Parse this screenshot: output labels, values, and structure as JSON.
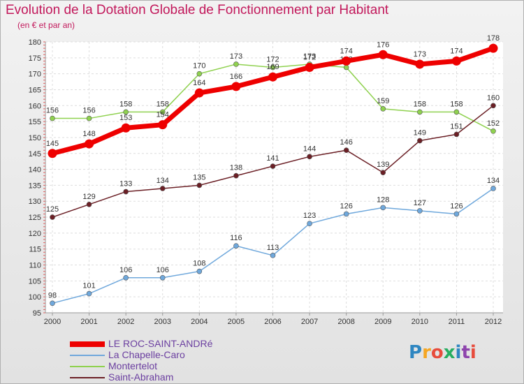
{
  "title": "Evolution de la Dotation Globale de Fonctionnement par Habitant",
  "subtitle": "(en € et par an)",
  "logo": {
    "text": "Proxiti",
    "colors": [
      "#2e86c1",
      "#f5a623",
      "#e74c3c",
      "#27ae60",
      "#2e86c1",
      "#8e44ad",
      "#e74c3c"
    ]
  },
  "chart_data": {
    "type": "line",
    "x": [
      "2000",
      "2001",
      "2002",
      "2003",
      "2004",
      "2005",
      "2006",
      "2007",
      "2008",
      "2009",
      "2010",
      "2011",
      "2012"
    ],
    "ylim": [
      95,
      180
    ],
    "yticks": [
      95,
      100,
      105,
      110,
      115,
      120,
      125,
      130,
      135,
      140,
      145,
      150,
      155,
      160,
      165,
      170,
      175,
      180
    ],
    "grid": true,
    "legend_position": "bottom",
    "series": [
      {
        "name": "LE ROC-SAINT-ANDRé",
        "color": "#ee0000",
        "values": [
          145,
          148,
          153,
          154,
          164,
          166,
          169,
          172,
          174,
          176,
          173,
          174,
          178
        ]
      },
      {
        "name": "La Chapelle-Caro",
        "color": "#6fa8dc",
        "values": [
          98,
          101,
          106,
          106,
          108,
          116,
          113,
          123,
          126,
          128,
          127,
          126,
          134
        ]
      },
      {
        "name": "Montertelot",
        "color": "#8fd14f",
        "values": [
          156,
          156,
          158,
          158,
          170,
          173,
          172,
          173,
          172,
          159,
          158,
          158,
          152
        ]
      },
      {
        "name": "Saint-Abraham",
        "color": "#6b1f25",
        "values": [
          125,
          129,
          133,
          134,
          135,
          138,
          141,
          144,
          146,
          139,
          149,
          151,
          160
        ]
      }
    ]
  }
}
